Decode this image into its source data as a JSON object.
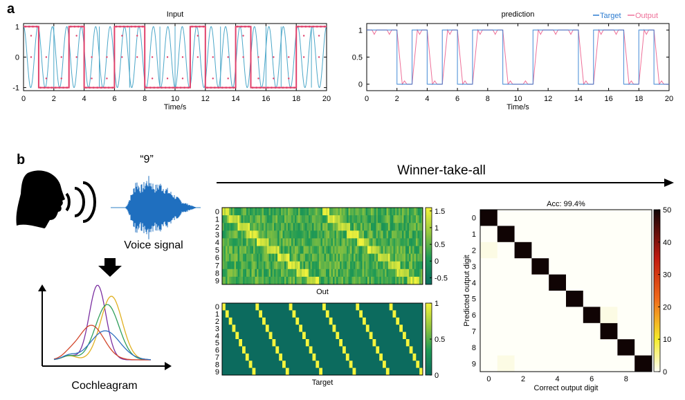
{
  "panel_labels": [
    "a",
    "b"
  ],
  "chart_data": [
    {
      "type": "line",
      "title": "Input",
      "xlabel": "Time/s",
      "ylabel": "",
      "xlim": [
        0,
        20
      ],
      "ylim": [
        -1.1,
        1.1
      ],
      "xticks": [
        0,
        2,
        4,
        6,
        8,
        10,
        12,
        14,
        16,
        18,
        20
      ],
      "yticks": [
        -1,
        0,
        1
      ],
      "bits": [
        1,
        0,
        0,
        1,
        0,
        0,
        1,
        1,
        0,
        0,
        0,
        1,
        0,
        0,
        1,
        0,
        0,
        0,
        1,
        1
      ],
      "series": [
        {
          "name": "",
          "kind": "sine-carrier",
          "color": "#4aa6c8",
          "cycles_per_second": 1
        },
        {
          "name": "",
          "kind": "bit-dots",
          "color": "#e0406a",
          "levels": [
            1,
            -1
          ]
        }
      ]
    },
    {
      "type": "line",
      "title": "prediction",
      "xlabel": "Time/s",
      "ylabel": "",
      "xlim": [
        0,
        20
      ],
      "ylim": [
        -0.12,
        1.12
      ],
      "xticks": [
        0,
        2,
        4,
        6,
        8,
        10,
        12,
        14,
        16,
        18,
        20
      ],
      "yticks": [
        0,
        0.5,
        1
      ],
      "legend_position": "top-right",
      "bits": [
        1,
        1,
        0,
        1,
        0,
        1,
        0,
        1,
        1,
        0,
        0,
        1,
        1,
        1,
        0,
        1,
        1,
        0,
        1,
        0
      ],
      "series": [
        {
          "name": "Target",
          "color": "#2b7bd0"
        },
        {
          "name": "Output",
          "color": "#ee6f98"
        }
      ]
    },
    {
      "type": "heatmap",
      "title": "",
      "xlabel": "Out",
      "y_categories": [
        "0",
        "1",
        "2",
        "3",
        "4",
        "5",
        "6",
        "7",
        "8",
        "9"
      ],
      "colorbar_ticks": [
        1.5,
        1,
        0.5,
        0,
        -0.5
      ],
      "clim": [
        -0.7,
        1.6
      ],
      "colormap": "viridis-like"
    },
    {
      "type": "heatmap",
      "title": "",
      "xlabel": "Target",
      "y_categories": [
        "0",
        "1",
        "2",
        "3",
        "4",
        "5",
        "6",
        "7",
        "8",
        "9"
      ],
      "colorbar_ticks": [
        1,
        0.5,
        0
      ],
      "clim": [
        0,
        1
      ],
      "colormap": "viridis-like",
      "diagonal_sweeps": 6
    },
    {
      "type": "heatmap",
      "title": "Acc: 99.4%",
      "xlabel": "Correct output digit",
      "ylabel": "Predicted output digit",
      "x_categories": [
        "0",
        "1",
        "2",
        "3",
        "4",
        "5",
        "6",
        "7",
        "8",
        "9"
      ],
      "y_categories": [
        "0",
        "1",
        "2",
        "3",
        "4",
        "5",
        "6",
        "7",
        "8",
        "9"
      ],
      "x_tick_labels": [
        "0",
        "2",
        "4",
        "6",
        "8"
      ],
      "y_tick_labels": [
        "0",
        "1",
        "2",
        "3",
        "4",
        "5",
        "6",
        "7",
        "8",
        "9"
      ],
      "colorbar_ticks": [
        50,
        40,
        30,
        20,
        10,
        0
      ],
      "clim": [
        0,
        50
      ],
      "diagonal": [
        50,
        50,
        50,
        50,
        50,
        50,
        50,
        50,
        50,
        50
      ],
      "off_diagonal": [
        {
          "predicted": 2,
          "correct": 0,
          "value": 1
        },
        {
          "predicted": 6,
          "correct": 7,
          "value": 1
        },
        {
          "predicted": 9,
          "correct": 1,
          "value": 1
        }
      ],
      "colormap": "hot-reversed"
    }
  ],
  "diagram": {
    "voice_label": "“9”",
    "voice_signal_label": "Voice signal",
    "cochleagram_label": "Cochleagram",
    "wta_label": "Winner-take-all",
    "cochleagram_colors": [
      "#7a2ea0",
      "#e0b020",
      "#2f9e5a",
      "#d2452a",
      "#2e6fbf"
    ]
  }
}
